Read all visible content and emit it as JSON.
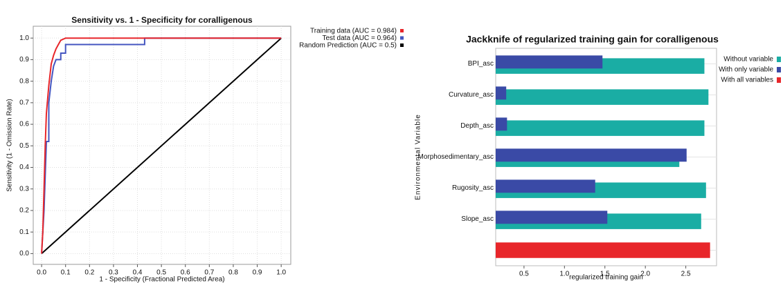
{
  "chart_data": [
    {
      "type": "line",
      "title": "Sensitivity vs. 1 - Specificity for coralligenous",
      "x_label": "1 - Specificity  (Fractional Predicted Area)",
      "y_label": "Sensitivity  (1 - Omission Rate)",
      "xlim": [
        -0.035,
        1.04
      ],
      "ylim": [
        -0.05,
        1.055
      ],
      "xticks": [
        {
          "value": 0,
          "label": "0.0"
        },
        0.1,
        0.2,
        0.3,
        0.4,
        0.5,
        0.6,
        0.7,
        0.8,
        0.9,
        {
          "value": 1,
          "label": "1.0"
        }
      ],
      "yticks": [
        {
          "value": 0,
          "label": "0.0"
        },
        0.1,
        0.2,
        0.3,
        0.4,
        0.5,
        0.6,
        0.7,
        0.8,
        0.9,
        {
          "value": 1,
          "label": "1.0"
        }
      ],
      "grid": true,
      "series": [
        {
          "name": "Training data (AUC = 0.984)",
          "color": "#e8262a",
          "x": [
            0,
            0.005,
            0.01,
            0.015,
            0.02,
            0.03,
            0.04,
            0.05,
            0.06,
            0.07,
            0.08,
            0.1,
            1
          ],
          "values": [
            0,
            0.1,
            0.3,
            0.5,
            0.65,
            0.78,
            0.88,
            0.92,
            0.95,
            0.97,
            0.99,
            1,
            1
          ]
        },
        {
          "name": "Test data (AUC = 0.964)",
          "color": "#4455c0",
          "x": [
            0,
            0.01,
            0.02,
            0.03,
            0.03,
            0.04,
            0.05,
            0.06,
            0.08,
            0.08,
            0.1,
            0.1,
            0.43,
            0.43,
            1
          ],
          "values": [
            0,
            0.2,
            0.52,
            0.52,
            0.7,
            0.8,
            0.87,
            0.9,
            0.9,
            0.93,
            0.93,
            0.97,
            0.97,
            1,
            1
          ]
        },
        {
          "name": "Random Prediction (AUC = 0.5)",
          "color": "#000000",
          "x": [
            0,
            1
          ],
          "values": [
            0,
            1
          ]
        }
      ]
    },
    {
      "type": "barh",
      "title": "Jackknife of regularized training gain for coralligenous",
      "x_label": "regularized training gain",
      "y_label": "Environmental Variable",
      "categories": [
        "BPI_asc",
        "Curvature_asc",
        "Depth_asc",
        "Morphosedimentary_asc",
        "Rugosity_asc",
        "Slope_asc",
        null
      ],
      "xlim": [
        0.15,
        2.88
      ],
      "xticks": [
        0.5,
        {
          "value": 1,
          "label": "1.0"
        },
        1.5,
        {
          "value": 2,
          "label": "2.0"
        },
        2.5
      ],
      "series": [
        {
          "name": "Without variable",
          "color": "#1aada4",
          "values": [
            2.73,
            2.78,
            2.73,
            2.42,
            2.75,
            2.69,
            null
          ]
        },
        {
          "name": "With only variable",
          "color": "#3a4aa6",
          "values": [
            1.47,
            0.28,
            0.29,
            2.51,
            1.38,
            1.53,
            null
          ]
        },
        {
          "name": "With all variables",
          "color": "#e8262a",
          "values": [
            null,
            null,
            null,
            null,
            null,
            null,
            2.8
          ]
        }
      ]
    }
  ]
}
